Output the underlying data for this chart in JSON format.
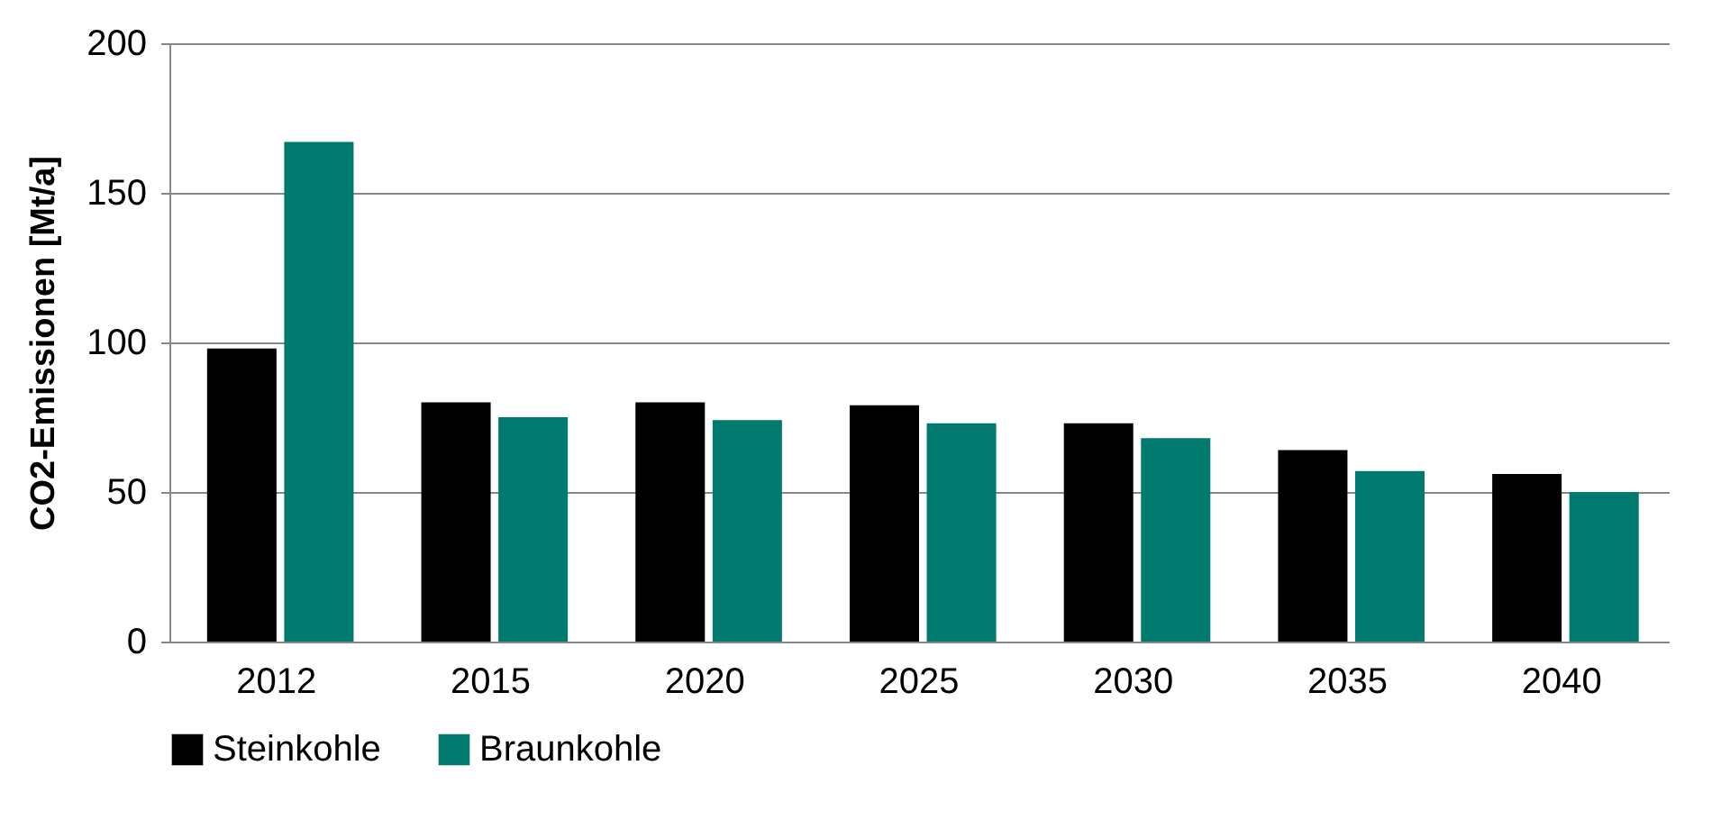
{
  "chart_data": {
    "type": "bar",
    "ylabel": "CO2-Emissionen [Mt/a]",
    "categories": [
      "2012",
      "2015",
      "2020",
      "2025",
      "2030",
      "2035",
      "2040"
    ],
    "series": [
      {
        "name": "Steinkohle",
        "color": "#000000",
        "values": [
          98,
          80,
          80,
          79,
          73,
          64,
          56
        ]
      },
      {
        "name": "Braunkohle",
        "color": "#007a6e",
        "values": [
          167,
          75,
          74,
          73,
          68,
          57,
          50
        ]
      }
    ],
    "ylim": [
      0,
      200
    ],
    "yticks": [
      0,
      50,
      100,
      150,
      200
    ],
    "grid": "y",
    "legend": "bottom"
  }
}
